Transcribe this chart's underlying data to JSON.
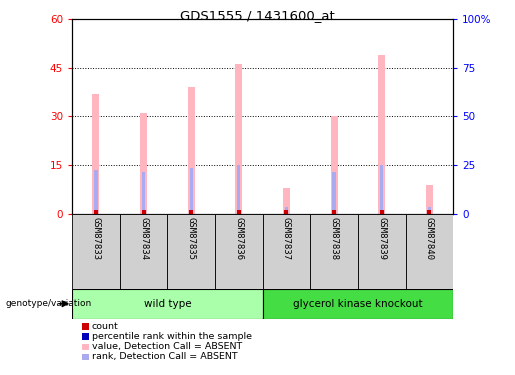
{
  "title": "GDS1555 / 1431600_at",
  "samples": [
    "GSM87833",
    "GSM87834",
    "GSM87835",
    "GSM87836",
    "GSM87837",
    "GSM87838",
    "GSM87839",
    "GSM87840"
  ],
  "pink_bar_values": [
    37,
    31,
    39,
    46,
    8,
    30,
    49,
    9
  ],
  "blue_bar_values": [
    13.5,
    13,
    14,
    15,
    2,
    13,
    15,
    2
  ],
  "red_dot_values": [
    0.5,
    0.5,
    0.5,
    0.5,
    0.5,
    0.5,
    0.5,
    0.5
  ],
  "ylim_left": [
    0,
    60
  ],
  "ylim_right": [
    0,
    100
  ],
  "yticks_left": [
    0,
    15,
    30,
    45,
    60
  ],
  "ytick_labels_left": [
    "0",
    "15",
    "30",
    "45",
    "60"
  ],
  "yticks_right": [
    0,
    25,
    50,
    75,
    100
  ],
  "ytick_labels_right": [
    "0",
    "25",
    "50",
    "75",
    "100%"
  ],
  "groups": [
    {
      "label": "wild type",
      "samples": [
        0,
        1,
        2,
        3
      ],
      "color": "#AAFFAA"
    },
    {
      "label": "glycerol kinase knockout",
      "samples": [
        4,
        5,
        6,
        7
      ],
      "color": "#44DD44"
    }
  ],
  "group_label": "genotype/variation",
  "pink_color": "#FFB6C1",
  "blue_color": "#AAAAEE",
  "red_color": "#CC0000",
  "legend_items": [
    {
      "label": "count",
      "color": "#CC0000"
    },
    {
      "label": "percentile rank within the sample",
      "color": "#0000BB"
    },
    {
      "label": "value, Detection Call = ABSENT",
      "color": "#FFB6C1"
    },
    {
      "label": "rank, Detection Call = ABSENT",
      "color": "#AAAAEE"
    }
  ]
}
